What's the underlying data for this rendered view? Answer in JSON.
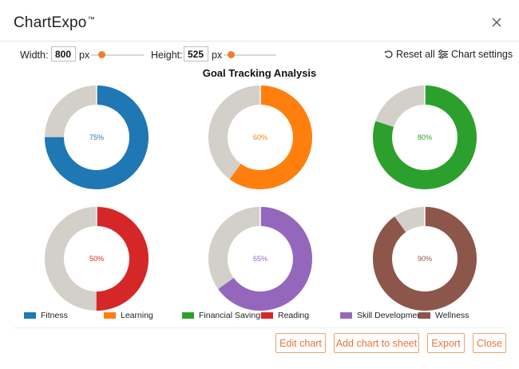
{
  "app": {
    "title": "ChartExpo",
    "trademark": "™"
  },
  "toolbar": {
    "width_label": "Width:",
    "width_value": "800",
    "width_unit": "px",
    "height_label": "Height:",
    "height_value": "525",
    "height_unit": "px",
    "reset_label": "Reset all",
    "settings_label": "Chart settings"
  },
  "chart_data": {
    "type": "donut",
    "title": "Goal Tracking Analysis",
    "remainder_color": "#d3cfc9",
    "series": [
      {
        "name": "Fitness",
        "value": 75,
        "label": "75%",
        "color": "#1f77b4"
      },
      {
        "name": "Learning",
        "value": 60,
        "label": "60%",
        "color": "#ff7f0e"
      },
      {
        "name": "Financial Savings",
        "value": 80,
        "label": "80%",
        "color": "#2ca02c"
      },
      {
        "name": "Reading",
        "value": 50,
        "label": "50%",
        "color": "#d62728"
      },
      {
        "name": "Skill Development",
        "value": 65,
        "label": "65%",
        "color": "#9467bd"
      },
      {
        "name": "Wellness",
        "value": 90,
        "label": "90%",
        "color": "#8c564b"
      }
    ]
  },
  "buttons": {
    "edit": "Edit chart",
    "add": "Add chart to sheet",
    "export": "Export",
    "close": "Close"
  },
  "colors": {
    "accent": "#f37b2d"
  }
}
